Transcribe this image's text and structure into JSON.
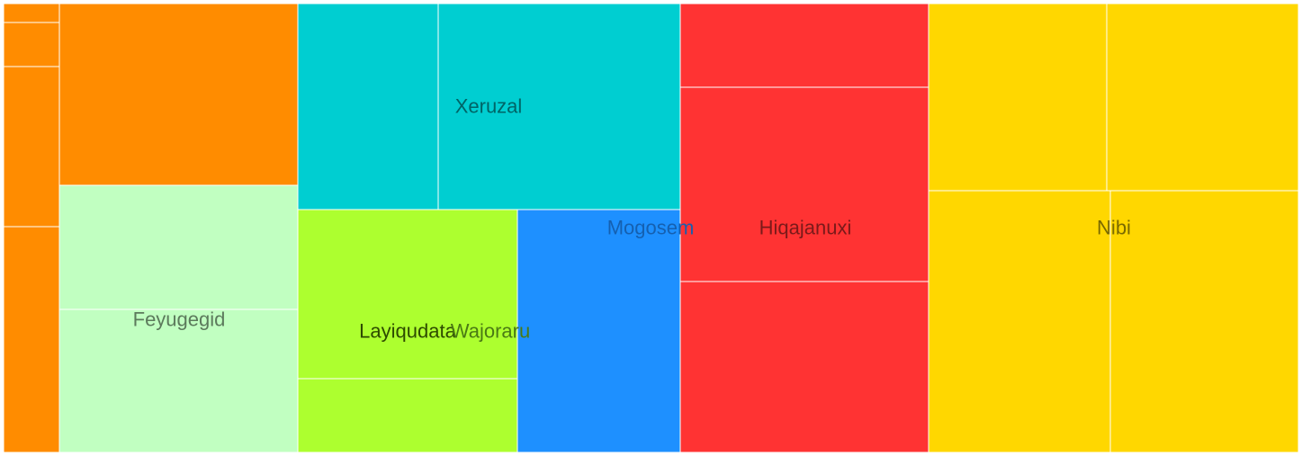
{
  "chart_data": {
    "type": "treemap",
    "title": "",
    "groups": [
      {
        "name": "",
        "color": "#FF8C00",
        "label_color": "#7a4300",
        "children": [
          2,
          5,
          18,
          25,
          54,
          72
        ]
      },
      {
        "name": "Feyugegid",
        "color": "#C1FFC1",
        "label_color": "#5c7a5c",
        "children": [
          37,
          43
        ]
      },
      {
        "name": "Xeruzal",
        "color": "#00CED1",
        "label_color": "#006466",
        "children": [
          36,
          62
        ]
      },
      {
        "name": "Layiqudata",
        "color": "#ADFF2F",
        "label_color": "#2d4a00",
        "children": [
          46,
          20
        ]
      },
      {
        "name": "Wajoraru",
        "color": "#ADFF2F",
        "label_color": "#4a7a14",
        "children": []
      },
      {
        "name": "Mogosem",
        "color": "#1E90FF",
        "label_color": "#1560b0",
        "children": [
          42
        ]
      },
      {
        "name": "Hiqajanuxi",
        "color": "#FF3333",
        "label_color": "#7a1a1a",
        "children": [
          26,
          60,
          53
        ]
      },
      {
        "name": "Nibi",
        "color": "#FFD700",
        "label_color": "#7a6a00",
        "children": [
          41,
          44,
          58,
          59
        ]
      }
    ]
  }
}
